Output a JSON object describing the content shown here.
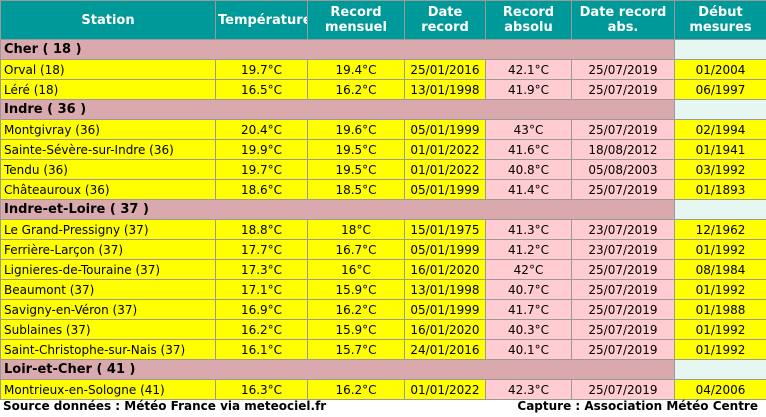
{
  "headers": {
    "station": "Station",
    "temperature": "Température",
    "record_mensuel": "Record mensuel",
    "date_record": "Date record",
    "record_absolu": "Record absolu",
    "date_record_abs": "Date record abs.",
    "debut_mesures": "Début mesures"
  },
  "groups": [
    {
      "name": "Cher ( 18 )",
      "rows": [
        {
          "station": "Orval (18)",
          "temp": "19.7°C",
          "rec_m": "19.4°C",
          "date_rec": "25/01/2016",
          "rec_abs": "42.1°C",
          "date_abs": "25/07/2019",
          "debut": "01/2004"
        },
        {
          "station": "Léré (18)",
          "temp": "16.5°C",
          "rec_m": "16.2°C",
          "date_rec": "13/01/1998",
          "rec_abs": "41.9°C",
          "date_abs": "25/07/2019",
          "debut": "06/1997"
        }
      ]
    },
    {
      "name": "Indre ( 36 )",
      "rows": [
        {
          "station": "Montgivray (36)",
          "temp": "20.4°C",
          "rec_m": "19.6°C",
          "date_rec": "05/01/1999",
          "rec_abs": "43°C",
          "date_abs": "25/07/2019",
          "debut": "02/1994"
        },
        {
          "station": "Sainte-Sévère-sur-Indre (36)",
          "temp": "19.9°C",
          "rec_m": "19.5°C",
          "date_rec": "01/01/2022",
          "rec_abs": "41.6°C",
          "date_abs": "18/08/2012",
          "debut": "01/1941"
        },
        {
          "station": "Tendu (36)",
          "temp": "19.7°C",
          "rec_m": "19.5°C",
          "date_rec": "01/01/2022",
          "rec_abs": "40.8°C",
          "date_abs": "05/08/2003",
          "debut": "03/1992"
        },
        {
          "station": "Châteauroux (36)",
          "temp": "18.6°C",
          "rec_m": "18.5°C",
          "date_rec": "05/01/1999",
          "rec_abs": "41.4°C",
          "date_abs": "25/07/2019",
          "debut": "01/1893"
        }
      ]
    },
    {
      "name": "Indre-et-Loire ( 37 )",
      "rows": [
        {
          "station": "Le Grand-Pressigny (37)",
          "temp": "18.8°C",
          "rec_m": "18°C",
          "date_rec": "15/01/1975",
          "rec_abs": "41.3°C",
          "date_abs": "23/07/2019",
          "debut": "12/1962"
        },
        {
          "station": "Ferrière-Larçon (37)",
          "temp": "17.7°C",
          "rec_m": "16.7°C",
          "date_rec": "05/01/1999",
          "rec_abs": "41.2°C",
          "date_abs": "23/07/2019",
          "debut": "01/1992"
        },
        {
          "station": "Lignieres-de-Touraine (37)",
          "temp": "17.3°C",
          "rec_m": "16°C",
          "date_rec": "16/01/2020",
          "rec_abs": "42°C",
          "date_abs": "25/07/2019",
          "debut": "08/1984"
        },
        {
          "station": "Beaumont (37)",
          "temp": "17.1°C",
          "rec_m": "15.9°C",
          "date_rec": "13/01/1998",
          "rec_abs": "40.7°C",
          "date_abs": "25/07/2019",
          "debut": "01/1992"
        },
        {
          "station": "Savigny-en-Véron (37)",
          "temp": "16.9°C",
          "rec_m": "16.2°C",
          "date_rec": "05/01/1999",
          "rec_abs": "41.7°C",
          "date_abs": "25/07/2019",
          "debut": "01/1988"
        },
        {
          "station": "Sublaines (37)",
          "temp": "16.2°C",
          "rec_m": "15.9°C",
          "date_rec": "16/01/2020",
          "rec_abs": "40.3°C",
          "date_abs": "25/07/2019",
          "debut": "01/1992"
        },
        {
          "station": "Saint-Christophe-sur-Nais (37)",
          "temp": "16.1°C",
          "rec_m": "15.7°C",
          "date_rec": "24/01/2016",
          "rec_abs": "40.1°C",
          "date_abs": "25/07/2019",
          "debut": "01/1992"
        }
      ]
    },
    {
      "name": "Loir-et-Cher ( 41 )",
      "rows": [
        {
          "station": "Montrieux-en-Sologne (41)",
          "temp": "16.3°C",
          "rec_m": "16.2°C",
          "date_rec": "01/01/2022",
          "rec_abs": "42.3°C",
          "date_abs": "25/07/2019",
          "debut": "04/2006"
        }
      ]
    }
  ],
  "footer": {
    "source": "Source données : Météo France via meteociel.fr",
    "capture": "Capture : Association Météo Centre"
  },
  "colors": {
    "header_bg": "#009999",
    "group_bg": "#d9a9ad",
    "data_bg": "#ffff00",
    "absolute_bg": "#ffccd2"
  }
}
